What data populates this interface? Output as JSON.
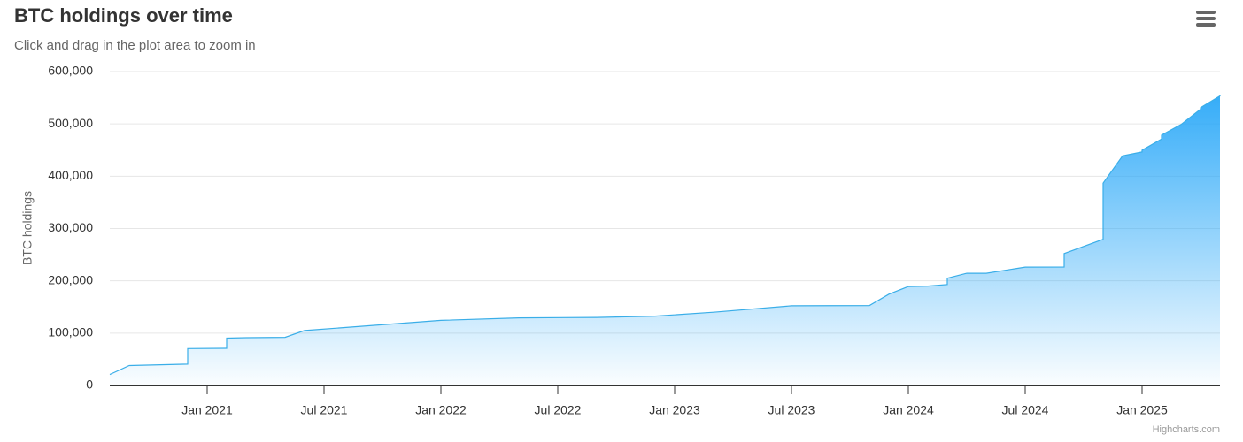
{
  "chart_data": {
    "type": "area",
    "title": "BTC holdings over time",
    "subtitle": "Click and drag in the plot area to zoom in",
    "y_axis_label": "BTC holdings",
    "credits": "Highcharts.com",
    "color": "#3aaee8",
    "grid": true,
    "x": [
      "2020-08",
      "2020-09",
      "2020-12",
      "2020-12",
      "2021-02",
      "2021-02",
      "2021-03",
      "2021-05",
      "2021-06",
      "2022-01",
      "2022-05",
      "2022-09",
      "2022-12",
      "2023-03",
      "2023-07",
      "2023-11",
      "2023-12",
      "2024-01",
      "2024-02",
      "2024-03",
      "2024-03",
      "2024-04",
      "2024-05",
      "2024-07",
      "2024-09",
      "2024-09",
      "2024-09",
      "2024-11",
      "2024-11",
      "2024-12",
      "2025-01",
      "2025-01",
      "2025-02",
      "2025-02",
      "2025-03",
      "2025-03",
      "2025-04",
      "2025-04",
      "2025-05",
      "2025-05"
    ],
    "values": [
      21000,
      38000,
      40800,
      70500,
      71000,
      90500,
      91300,
      92000,
      105000,
      124400,
      129200,
      130000,
      132500,
      140000,
      152300,
      152800,
      174500,
      189100,
      190000,
      193000,
      205000,
      214400,
      214400,
      226300,
      226500,
      244800,
      252200,
      279400,
      386700,
      439000,
      446400,
      450000,
      471100,
      478700,
      499000,
      499000,
      528000,
      531000,
      553500,
      555400
    ],
    "xlim": [
      "2020-08",
      "2025-05"
    ],
    "xticks": [
      {
        "value": "2021-01",
        "label": "Jan 2021"
      },
      {
        "value": "2021-07",
        "label": "Jul 2021"
      },
      {
        "value": "2022-01",
        "label": "Jan 2022"
      },
      {
        "value": "2022-07",
        "label": "Jul 2022"
      },
      {
        "value": "2023-01",
        "label": "Jan 2023"
      },
      {
        "value": "2023-07",
        "label": "Jul 2023"
      },
      {
        "value": "2024-01",
        "label": "Jan 2024"
      },
      {
        "value": "2024-07",
        "label": "Jul 2024"
      },
      {
        "value": "2025-01",
        "label": "Jan 2025"
      }
    ],
    "ylim": [
      0,
      600000
    ],
    "yticks": [
      0,
      {
        "value": 100000,
        "label": "100,000"
      },
      {
        "value": 200000,
        "label": "200,000"
      },
      {
        "value": 300000,
        "label": "300,000"
      },
      {
        "value": 400000,
        "label": "400,000"
      },
      {
        "value": 500000,
        "label": "500,000"
      },
      {
        "value": 600000,
        "label": "600,000"
      }
    ]
  }
}
